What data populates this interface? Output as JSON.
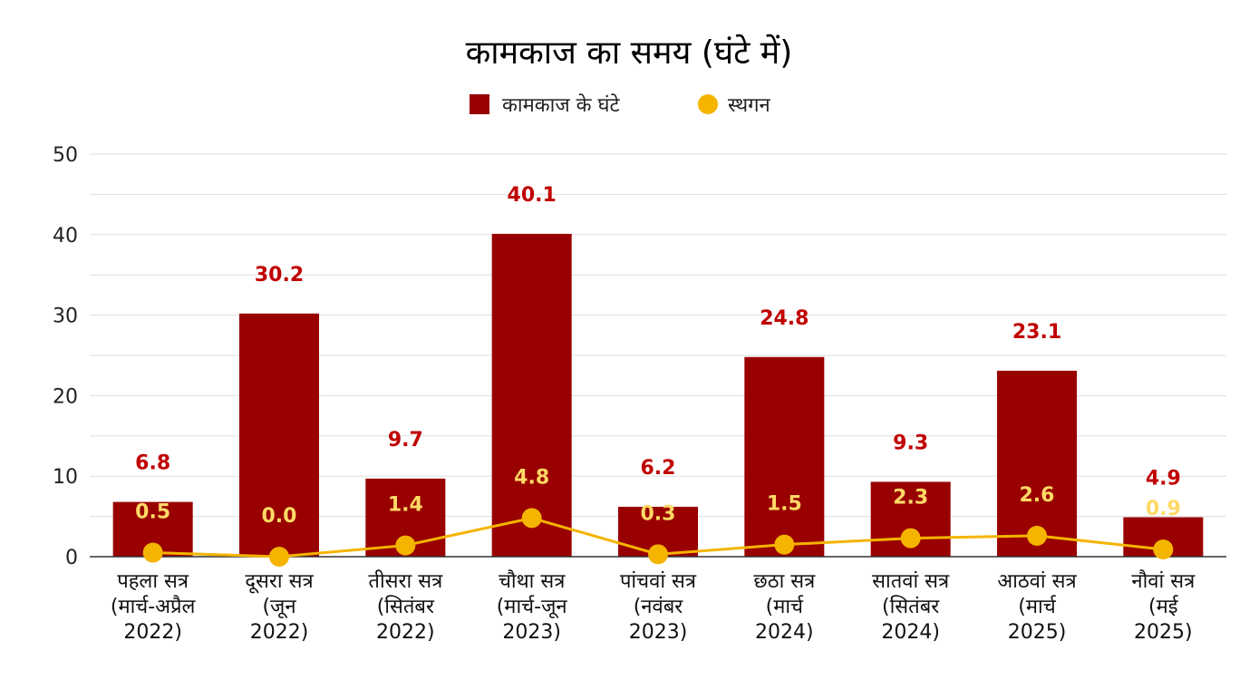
{
  "chart_data": {
    "type": "bar",
    "title": "कामकाज का समय (घंटे में)",
    "categories": [
      [
        "पहला सत्र",
        "(मार्च-अप्रैल",
        "2022)"
      ],
      [
        "दूसरा सत्र",
        "(जून",
        "2022)"
      ],
      [
        "तीसरा सत्र",
        "(सितंबर",
        "2022)"
      ],
      [
        "चौथा सत्र",
        "(मार्च-जून",
        "2023)"
      ],
      [
        "पांचवां सत्र",
        "(नवंबर",
        "2023)"
      ],
      [
        "छठा सत्र",
        "(मार्च",
        "2024)"
      ],
      [
        "सातवां सत्र",
        "(सितंबर",
        "2024)"
      ],
      [
        "आठवां सत्र",
        "(मार्च",
        "2025)"
      ],
      [
        "नौवां सत्र",
        "(मई",
        "2025)"
      ]
    ],
    "series": [
      {
        "name": "कामकाज के घंटे",
        "type": "bar",
        "color": "#990000",
        "label_color": "#c00000",
        "values": [
          6.8,
          30.2,
          9.7,
          40.1,
          6.2,
          24.8,
          9.3,
          23.1,
          4.9
        ],
        "labels": [
          "6.8",
          "30.2",
          "9.7",
          "40.1",
          "6.2",
          "24.8",
          "9.3",
          "23.1",
          "4.9"
        ]
      },
      {
        "name": "स्थगन",
        "type": "line",
        "color": "#f4b400",
        "label_color": "#ffd966",
        "values": [
          0.5,
          0.0,
          1.4,
          4.8,
          0.3,
          1.5,
          2.3,
          2.6,
          0.9
        ],
        "labels": [
          "0.5",
          "0.0",
          "1.4",
          "4.8",
          "0.3",
          "1.5",
          "2.3",
          "2.6",
          "0.9"
        ]
      }
    ],
    "ylim": [
      0,
      50
    ],
    "yticks": [
      0,
      10,
      20,
      30,
      40,
      50
    ],
    "ytick_labels": [
      "0",
      "10",
      "20",
      "30",
      "40",
      "50"
    ],
    "grid": true,
    "legend_position": "top-center"
  }
}
